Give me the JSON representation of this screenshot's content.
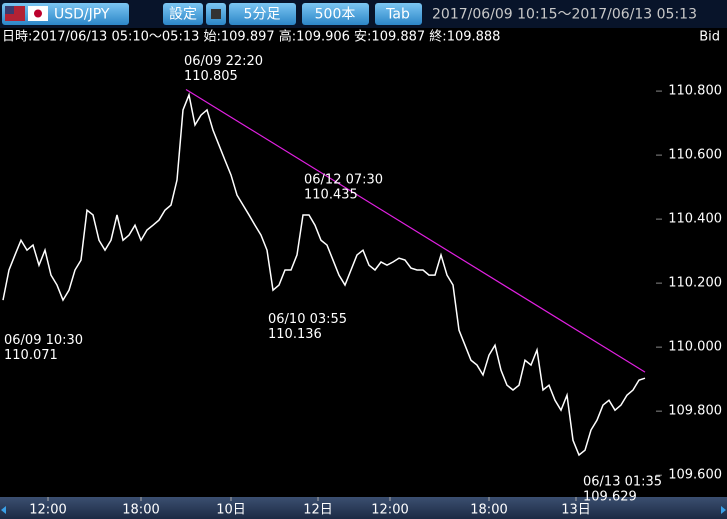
{
  "toolbar": {
    "pair": "USD/JPY",
    "settings": "設定",
    "interval": "5分足",
    "bars": "500本",
    "tab": "Tab",
    "range": "2017/06/09 10:15～2017/06/13 05:13"
  },
  "chart_data": {
    "type": "line",
    "info": "日時:2017/06/13 05:10～05:13 始:109.897 高:109.906 安:109.887 終:109.888",
    "price_type": "Bid",
    "color": "#ffffff",
    "values": [
      110.147,
      110.241,
      110.288,
      110.334,
      110.303,
      110.319,
      110.256,
      110.303,
      110.225,
      110.194,
      110.147,
      110.178,
      110.241,
      110.272,
      110.428,
      110.413,
      110.334,
      110.303,
      110.334,
      110.413,
      110.334,
      110.35,
      110.381,
      110.334,
      110.366,
      110.381,
      110.397,
      110.428,
      110.444,
      110.522,
      110.741,
      110.788,
      110.694,
      110.725,
      110.741,
      110.678,
      110.631,
      110.584,
      110.538,
      110.475,
      110.444,
      110.413,
      110.381,
      110.35,
      110.303,
      110.178,
      110.194,
      110.241,
      110.241,
      110.288,
      110.413,
      110.413,
      110.381,
      110.334,
      110.319,
      110.272,
      110.225,
      110.194,
      110.241,
      110.288,
      110.303,
      110.256,
      110.241,
      110.266,
      110.256,
      110.266,
      110.278,
      110.272,
      110.247,
      110.241,
      110.241,
      110.225,
      110.225,
      110.288,
      110.225,
      110.194,
      110.053,
      110.006,
      109.959,
      109.944,
      109.913,
      109.975,
      110.006,
      109.928,
      109.881,
      109.866,
      109.881,
      109.959,
      109.944,
      109.991,
      109.866,
      109.881,
      109.834,
      109.803,
      109.85,
      109.709,
      109.663,
      109.678,
      109.741,
      109.772,
      109.819,
      109.834,
      109.803,
      109.819,
      109.85,
      109.866,
      109.897,
      109.903
    ],
    "xlim": [
      -0.5,
      107.5
    ],
    "xticks": [
      {
        "value": 7.5,
        "label": "12:00"
      },
      {
        "value": 23,
        "label": "18:00"
      },
      {
        "value": 38,
        "label": "10日"
      },
      {
        "value": 52.5,
        "label": "12日"
      },
      {
        "value": 64.5,
        "label": "12:00"
      },
      {
        "value": 81,
        "label": "18:00"
      },
      {
        "value": 95.5,
        "label": "13日"
      }
    ],
    "ylim": [
      109.538,
      110.944
    ],
    "yticks": [
      {
        "value": 109.6,
        "label": "109.600"
      },
      {
        "value": 109.8,
        "label": "109.800"
      },
      {
        "value": 110.0,
        "label": "110.000"
      },
      {
        "value": 110.2,
        "label": "110.200"
      },
      {
        "value": 110.4,
        "label": "110.400"
      },
      {
        "value": 110.6,
        "label": "110.600"
      },
      {
        "value": 110.8,
        "label": "110.800"
      }
    ],
    "annotations": [
      {
        "time": "06/09 10:30",
        "value": 110.071,
        "x": 0,
        "position": "below"
      },
      {
        "time": "06/09 22:20",
        "value": 110.805,
        "x": 30.5,
        "position": "above"
      },
      {
        "time": "06/10 03:55",
        "value": 110.136,
        "x": 44.5,
        "position": "below"
      },
      {
        "time": "06/12 07:30",
        "value": 110.435,
        "x": 50.5,
        "position": "above"
      },
      {
        "time": "06/13 01:35",
        "value": 109.629,
        "x": 97,
        "position": "below"
      }
    ],
    "trendline": {
      "color": "#e020e0",
      "x": [
        30.5,
        107
      ],
      "values": [
        110.805,
        109.922
      ]
    }
  }
}
